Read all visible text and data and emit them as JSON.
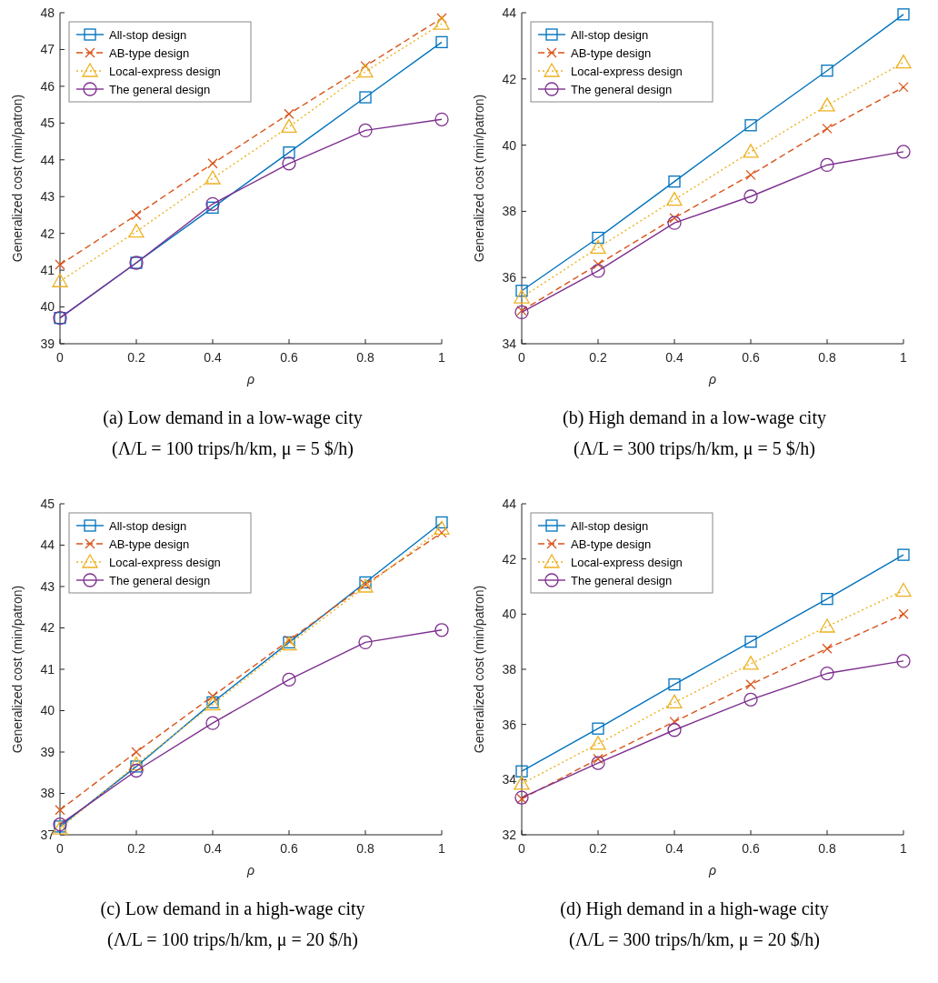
{
  "chart_data": [
    {
      "type": "line",
      "title": "(a) Low demand in a low-wage city",
      "subtitle": "(Λ/L = 100 trips/h/km, μ = 5 $/h)",
      "xlabel": "ρ",
      "ylabel": "Generalized cost (min/patron)",
      "x": [
        0,
        0.2,
        0.4,
        0.6,
        0.8,
        1
      ],
      "xlim": [
        0,
        1
      ],
      "xticks": [
        0,
        0.2,
        0.4,
        0.6,
        0.8,
        1
      ],
      "ylim": [
        39,
        48
      ],
      "yticks": [
        39,
        40,
        41,
        42,
        43,
        44,
        45,
        46,
        47,
        48
      ],
      "grid": false,
      "legend": "top left",
      "series": [
        {
          "name": "All-stop design",
          "color": "#0072bd",
          "marker": "square",
          "line_style": "solid",
          "values": [
            39.7,
            41.2,
            42.7,
            44.2,
            45.7,
            47.2
          ]
        },
        {
          "name": "AB-type design",
          "color": "#d95319",
          "marker": "cross",
          "line_style": "dashed",
          "values": [
            41.15,
            42.5,
            43.9,
            45.25,
            46.55,
            47.85
          ]
        },
        {
          "name": "Local-express design",
          "color": "#edb120",
          "marker": "triangle",
          "line_style": "dotted",
          "values": [
            40.7,
            42.05,
            43.5,
            44.9,
            46.4,
            47.7
          ]
        },
        {
          "name": "The general design",
          "color": "#7e2f8e",
          "marker": "circle",
          "line_style": "solid",
          "values": [
            39.7,
            41.2,
            42.8,
            43.9,
            44.8,
            45.1
          ]
        }
      ]
    },
    {
      "type": "line",
      "title": "(b) High demand in a low-wage city",
      "subtitle": "(Λ/L = 300 trips/h/km, μ = 5 $/h)",
      "xlabel": "ρ",
      "ylabel": "Generalized cost (min/patron)",
      "x": [
        0,
        0.2,
        0.4,
        0.6,
        0.8,
        1
      ],
      "xlim": [
        0,
        1
      ],
      "xticks": [
        0,
        0.2,
        0.4,
        0.6,
        0.8,
        1
      ],
      "ylim": [
        34,
        44
      ],
      "yticks": [
        34,
        36,
        38,
        40,
        42,
        44
      ],
      "grid": false,
      "legend": "top left",
      "series": [
        {
          "name": "All-stop design",
          "color": "#0072bd",
          "marker": "square",
          "line_style": "solid",
          "values": [
            35.6,
            37.2,
            38.9,
            40.6,
            42.25,
            43.95
          ]
        },
        {
          "name": "AB-type design",
          "color": "#d95319",
          "marker": "cross",
          "line_style": "dashed",
          "values": [
            35.0,
            36.4,
            37.8,
            39.1,
            40.5,
            41.75
          ]
        },
        {
          "name": "Local-express design",
          "color": "#edb120",
          "marker": "triangle",
          "line_style": "dotted",
          "values": [
            35.4,
            36.9,
            38.35,
            39.8,
            41.2,
            42.5
          ]
        },
        {
          "name": "The general design",
          "color": "#7e2f8e",
          "marker": "circle",
          "line_style": "solid",
          "values": [
            34.95,
            36.2,
            37.65,
            38.45,
            39.4,
            39.8
          ]
        }
      ]
    },
    {
      "type": "line",
      "title": "(c) Low demand in a high-wage city",
      "subtitle": "(Λ/L = 100 trips/h/km, μ = 20 $/h)",
      "xlabel": "ρ",
      "ylabel": "Generalized cost (min/patron)",
      "x": [
        0,
        0.2,
        0.4,
        0.6,
        0.8,
        1
      ],
      "xlim": [
        0,
        1
      ],
      "xticks": [
        0,
        0.2,
        0.4,
        0.6,
        0.8,
        1
      ],
      "ylim": [
        37,
        45
      ],
      "yticks": [
        37,
        38,
        39,
        40,
        41,
        42,
        43,
        44,
        45
      ],
      "grid": false,
      "legend": "top left",
      "series": [
        {
          "name": "All-stop design",
          "color": "#0072bd",
          "marker": "square",
          "line_style": "solid",
          "values": [
            37.2,
            38.65,
            40.2,
            41.65,
            43.1,
            44.55
          ]
        },
        {
          "name": "AB-type design",
          "color": "#d95319",
          "marker": "cross",
          "line_style": "dashed",
          "values": [
            37.6,
            39.0,
            40.35,
            41.7,
            43.05,
            44.3
          ]
        },
        {
          "name": "Local-express design",
          "color": "#edb120",
          "marker": "triangle",
          "line_style": "dotted",
          "values": [
            37.15,
            38.7,
            40.15,
            41.6,
            43.0,
            44.4
          ]
        },
        {
          "name": "The general design",
          "color": "#7e2f8e",
          "marker": "circle",
          "line_style": "solid",
          "values": [
            37.25,
            38.55,
            39.7,
            40.75,
            41.65,
            41.95
          ]
        }
      ]
    },
    {
      "type": "line",
      "title": "(d) High demand in a high-wage city",
      "subtitle": "(Λ/L = 300 trips/h/km, μ = 20 $/h)",
      "xlabel": "ρ",
      "ylabel": "Generalized cost (min/patron)",
      "x": [
        0,
        0.2,
        0.4,
        0.6,
        0.8,
        1
      ],
      "xlim": [
        0,
        1
      ],
      "xticks": [
        0,
        0.2,
        0.4,
        0.6,
        0.8,
        1
      ],
      "ylim": [
        32,
        44
      ],
      "yticks": [
        32,
        34,
        36,
        38,
        40,
        42,
        44
      ],
      "grid": false,
      "legend": "top left",
      "series": [
        {
          "name": "All-stop design",
          "color": "#0072bd",
          "marker": "square",
          "line_style": "solid",
          "values": [
            34.3,
            35.85,
            37.45,
            39.0,
            40.55,
            42.15
          ]
        },
        {
          "name": "AB-type design",
          "color": "#d95319",
          "marker": "cross",
          "line_style": "dashed",
          "values": [
            33.3,
            34.75,
            36.1,
            37.45,
            38.75,
            40.0
          ]
        },
        {
          "name": "Local-express design",
          "color": "#edb120",
          "marker": "triangle",
          "line_style": "dotted",
          "values": [
            33.85,
            35.3,
            36.8,
            38.2,
            39.55,
            40.85
          ]
        },
        {
          "name": "The general design",
          "color": "#7e2f8e",
          "marker": "circle",
          "line_style": "solid",
          "values": [
            33.35,
            34.6,
            35.8,
            36.9,
            37.85,
            38.3
          ]
        }
      ]
    }
  ]
}
